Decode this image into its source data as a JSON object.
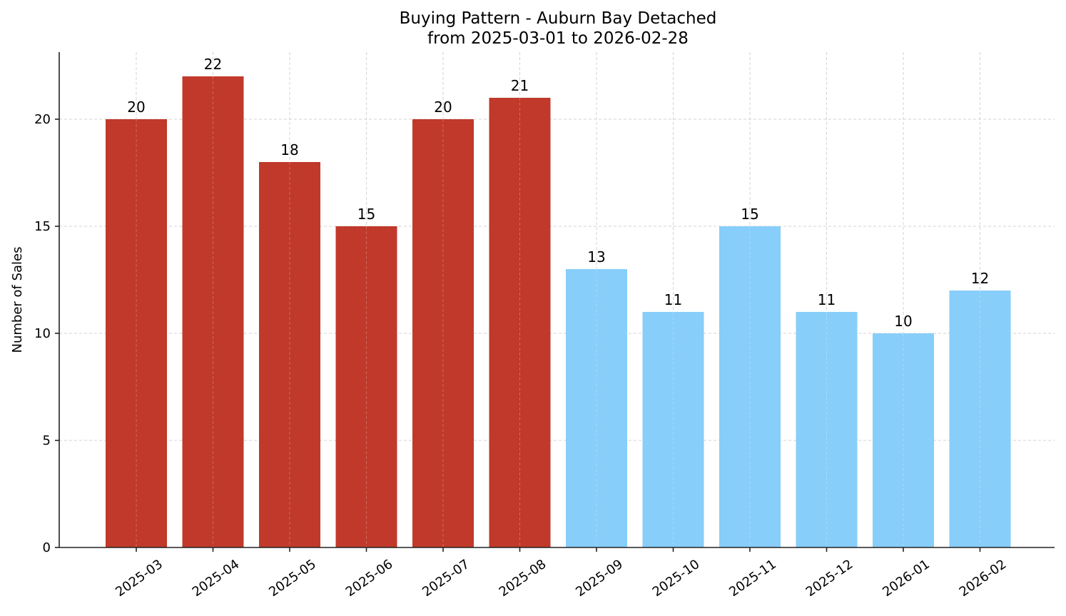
{
  "chart_data": {
    "type": "bar",
    "title": "Buying Pattern - Auburn Bay Detached",
    "subtitle": "from 2025-03-01 to 2026-02-28",
    "xlabel": "",
    "ylabel": "Number of Sales",
    "categories": [
      "2025-03",
      "2025-04",
      "2025-05",
      "2025-06",
      "2025-07",
      "2025-08",
      "2025-09",
      "2025-10",
      "2025-11",
      "2025-12",
      "2026-01",
      "2026-02"
    ],
    "values": [
      20,
      22,
      18,
      15,
      20,
      21,
      13,
      11,
      15,
      11,
      10,
      12
    ],
    "bar_colors": [
      "#c0392b",
      "#c0392b",
      "#c0392b",
      "#c0392b",
      "#c0392b",
      "#c0392b",
      "#87cefa",
      "#87cefa",
      "#87cefa",
      "#87cefa",
      "#87cefa",
      "#87cefa"
    ],
    "yticks": [
      0,
      5,
      10,
      15,
      20
    ],
    "ylim": [
      0,
      23.1
    ],
    "grid": true,
    "data_labels": true,
    "xtick_rotation": 35,
    "legend": null
  }
}
